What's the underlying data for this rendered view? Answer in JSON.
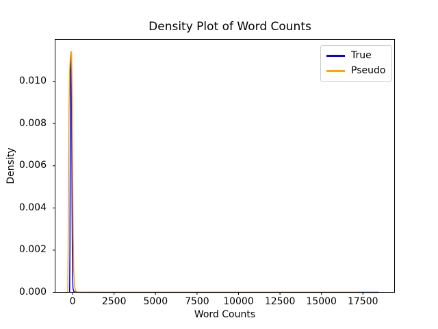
{
  "chart": {
    "title": "Density Plot of Word Counts",
    "xlabel": "Word Counts",
    "ylabel": "Density"
  },
  "chart_data": {
    "type": "line",
    "title": "Density Plot of Word Counts",
    "xlabel": "Word Counts",
    "ylabel": "Density",
    "xlim": [
      -1056,
      19406
    ],
    "ylim": [
      0,
      0.011987
    ],
    "x_ticks": [
      0,
      2500,
      5000,
      7500,
      10000,
      12500,
      15000,
      17500
    ],
    "x_tick_labels": [
      "0",
      "2500",
      "5000",
      "7500",
      "10000",
      "12500",
      "15000",
      "17500"
    ],
    "y_ticks": [
      0.0,
      0.002,
      0.004,
      0.006,
      0.008,
      0.01
    ],
    "y_tick_labels": [
      "0.000",
      "0.002",
      "0.004",
      "0.006",
      "0.008",
      "0.010"
    ],
    "grid": false,
    "legend_position": "upper right",
    "line_width": 1.5,
    "peak_density": 0.0114,
    "series": [
      {
        "name": "True",
        "color": "#0000ff",
        "points": [
          [
            -180,
            0
          ],
          [
            -160,
            0.002
          ],
          [
            -145,
            0.006
          ],
          [
            -130,
            0.0095
          ],
          [
            -110,
            0.0112
          ],
          [
            -90,
            0.01139
          ],
          [
            -70,
            0.0106
          ],
          [
            -50,
            0.008
          ],
          [
            -30,
            0.004
          ],
          [
            -10,
            0.0012
          ],
          [
            20,
            0.0002
          ],
          [
            80,
            3e-05
          ],
          [
            200,
            8e-06
          ],
          [
            600,
            3e-06
          ],
          [
            2000,
            1e-06
          ],
          [
            5000,
            8e-07
          ],
          [
            10000,
            6e-07
          ],
          [
            15000,
            5e-07
          ],
          [
            18456,
            4e-07
          ]
        ]
      },
      {
        "name": "Pseudo",
        "color": "#ffa500",
        "points": [
          [
            -290,
            0
          ],
          [
            -270,
            0.002
          ],
          [
            -250,
            0.005
          ],
          [
            -220,
            0.0085
          ],
          [
            -180,
            0.0105
          ],
          [
            -120,
            0.0113
          ],
          [
            -60,
            0.0114
          ],
          [
            -30,
            0.0095
          ],
          [
            0,
            0.006
          ],
          [
            30,
            0.003
          ],
          [
            70,
            0.001
          ],
          [
            120,
            0.0003
          ],
          [
            200,
            5e-05
          ],
          [
            350,
            1e-05
          ],
          [
            700,
            5e-06
          ],
          [
            1500,
            2e-06
          ],
          [
            5000,
            1e-06
          ],
          [
            10000,
            8e-07
          ],
          [
            14000,
            7e-07
          ],
          [
            17218,
            6e-07
          ]
        ]
      }
    ]
  }
}
